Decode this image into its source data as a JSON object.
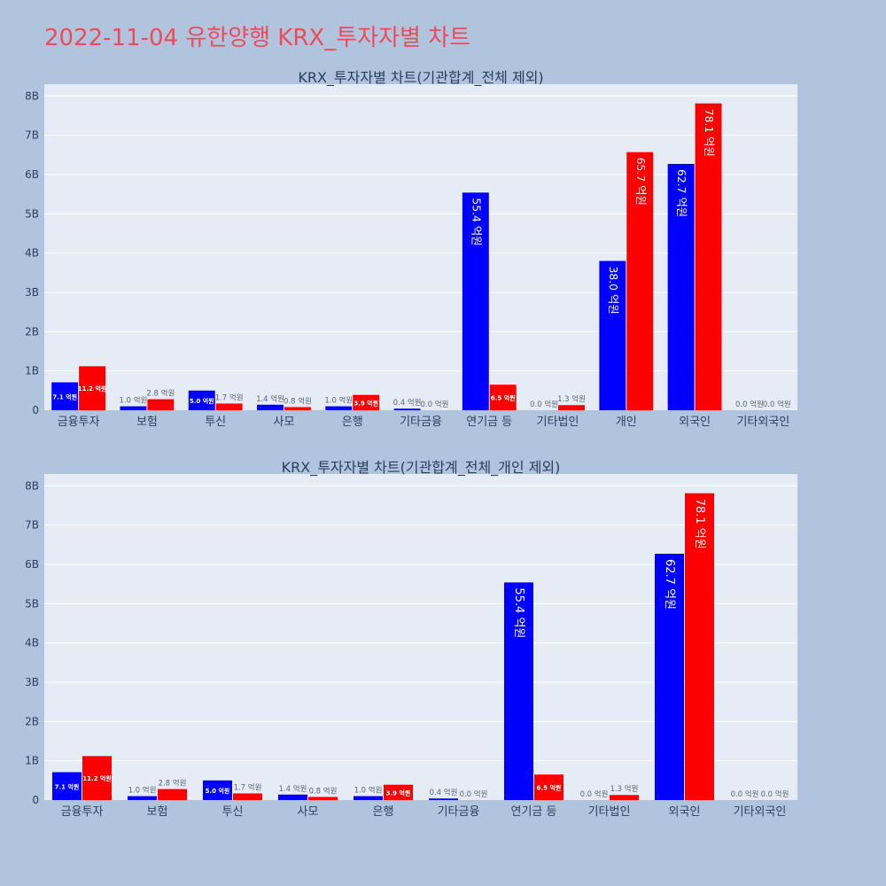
{
  "page": {
    "title": "2022-11-04 유한양행 KRX_투자자별 차트"
  },
  "colors": {
    "buy": "#0000ff",
    "sell": "#ff0000",
    "plot_bg": "#e5ecf6",
    "page_bg": "#b0c4de",
    "title": "#ef4a5c"
  },
  "chart_data": [
    {
      "type": "bar",
      "title": "KRX_투자자별 차트(기관합계_전체 제외)",
      "categories": [
        "금융투자",
        "보험",
        "투신",
        "사모",
        "은행",
        "기타금융",
        "연기금 등",
        "기타법인",
        "개인",
        "외국인",
        "기타외국인"
      ],
      "series": [
        {
          "color": "#0000ff",
          "values": [
            0.71,
            0.1,
            0.5,
            0.14,
            0.1,
            0.04,
            5.54,
            0.0,
            3.8,
            6.27,
            0.0
          ],
          "labels": [
            "7.1 억원",
            "1.0 억원",
            "5.0 억원",
            "1.4 억원",
            "1.0 억원",
            "0.4 억원",
            "55.4 억원",
            "0.0 억원",
            "38.0 억원",
            "62.7 억원",
            "0.0 억원"
          ]
        },
        {
          "color": "#ff0000",
          "values": [
            1.12,
            0.28,
            0.17,
            0.08,
            0.39,
            0.0,
            0.65,
            0.13,
            6.57,
            7.81,
            0.0
          ],
          "labels": [
            "11.2 억원",
            "2.8 억원",
            "1.7 억원",
            "0.8 억원",
            "3.9 억원",
            "0.0 억원",
            "6.5 억원",
            "1.3 억원",
            "65.7 억원",
            "78.1 억원",
            "0.0 억원"
          ]
        }
      ],
      "yticks": [
        "0",
        "1B",
        "2B",
        "3B",
        "4B",
        "5B",
        "6B",
        "7B",
        "8B"
      ],
      "ylim": [
        0,
        8.3
      ],
      "grid": true,
      "legend": "none"
    },
    {
      "type": "bar",
      "title": "KRX_투자자별 차트(기관합계_전체_개인 제외)",
      "categories": [
        "금융투자",
        "보험",
        "투신",
        "사모",
        "은행",
        "기타금융",
        "연기금 등",
        "기타법인",
        "외국인",
        "기타외국인"
      ],
      "series": [
        {
          "color": "#0000ff",
          "values": [
            0.71,
            0.1,
            0.5,
            0.14,
            0.1,
            0.04,
            5.54,
            0.0,
            6.27,
            0.0
          ],
          "labels": [
            "7.1 억원",
            "1.0 억원",
            "5.0 억원",
            "1.4 억원",
            "1.0 억원",
            "0.4 억원",
            "55.4 억원",
            "0.0 억원",
            "62.7 억원",
            "0.0 억원"
          ]
        },
        {
          "color": "#ff0000",
          "values": [
            1.12,
            0.28,
            0.17,
            0.08,
            0.39,
            0.0,
            0.65,
            0.13,
            7.81,
            0.0
          ],
          "labels": [
            "11.2 억원",
            "2.8 억원",
            "1.7 억원",
            "0.8 억원",
            "3.9 억원",
            "0.0 억원",
            "6.5 억원",
            "1.3 억원",
            "78.1 억원",
            "0.0 억원"
          ]
        }
      ],
      "yticks": [
        "0",
        "1B",
        "2B",
        "3B",
        "4B",
        "5B",
        "6B",
        "7B",
        "8B"
      ],
      "ylim": [
        0,
        8.3
      ],
      "grid": true,
      "legend": "none"
    }
  ]
}
